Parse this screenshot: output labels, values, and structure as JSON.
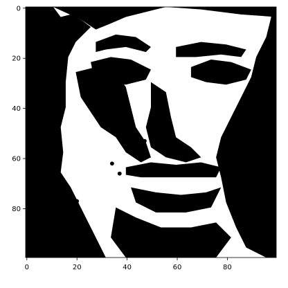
{
  "chart_data": {
    "type": "heatmap",
    "title": "",
    "xlabel": "",
    "ylabel": "",
    "xlim": [
      -0.5,
      99.5
    ],
    "ylim": [
      99.5,
      -0.5
    ],
    "origin": "upper",
    "colormap": "gray",
    "grid": false,
    "legend": "none",
    "colorbar": false,
    "x_ticks": [
      0,
      20,
      40,
      60,
      80
    ],
    "x_tick_labels": [
      "0",
      "20",
      "40",
      "60",
      "80"
    ],
    "y_ticks": [
      0,
      20,
      40,
      60,
      80
    ],
    "y_tick_labels": [
      "0",
      "20",
      "40",
      "60",
      "80"
    ],
    "image_size": [
      100,
      100
    ],
    "value_range": [
      0,
      1
    ],
    "values_note": "binary image (0 = black, 1 = white): a high-contrast face",
    "colors": {
      "low": "#000000",
      "high": "#ffffff",
      "axes": "#000000"
    }
  }
}
